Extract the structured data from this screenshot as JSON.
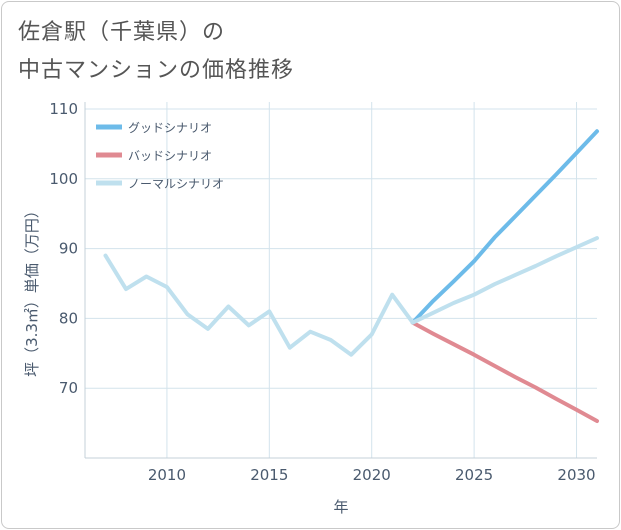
{
  "chart_data": {
    "type": "line",
    "title_line1": "佐倉駅（千葉県）の",
    "title_line2": "中古マンションの価格推移",
    "xlabel": "年",
    "ylabel": "坪（3.3㎡）単価（万円）",
    "xlim": [
      2006,
      2031
    ],
    "ylim": [
      60,
      111
    ],
    "x_ticks": [
      2010,
      2015,
      2020,
      2025,
      2030
    ],
    "y_ticks": [
      70,
      80,
      90,
      100,
      110
    ],
    "grid": true,
    "legend_position": "top-left",
    "series": [
      {
        "name": "グッドシナリオ",
        "color": "#6dbbe9",
        "x": [
          2022,
          2023,
          2024,
          2025,
          2026,
          2027,
          2028,
          2029,
          2030,
          2031
        ],
        "values": [
          79.4,
          82.5,
          85.3,
          88.2,
          91.6,
          94.6,
          97.6,
          100.6,
          103.7,
          106.8
        ]
      },
      {
        "name": "バッドシナリオ",
        "color": "#e08a92",
        "x": [
          2022,
          2023,
          2024,
          2025,
          2026,
          2027,
          2028,
          2029,
          2030,
          2031
        ],
        "values": [
          79.4,
          77.8,
          76.3,
          74.8,
          73.2,
          71.6,
          70.1,
          68.5,
          66.9,
          65.3
        ]
      },
      {
        "name": "ノーマルシナリオ",
        "color": "#bfe0ee",
        "x": [
          2007,
          2008,
          2009,
          2010,
          2011,
          2012,
          2013,
          2014,
          2015,
          2016,
          2017,
          2018,
          2019,
          2020,
          2021,
          2022,
          2023,
          2024,
          2025,
          2026,
          2027,
          2028,
          2029,
          2030,
          2031
        ],
        "values": [
          89.0,
          84.2,
          86.0,
          84.5,
          80.6,
          78.5,
          81.7,
          79.0,
          81.0,
          75.8,
          78.1,
          76.9,
          74.8,
          77.7,
          83.4,
          79.4,
          80.8,
          82.2,
          83.4,
          84.9,
          86.2,
          87.5,
          88.9,
          90.2,
          91.5
        ]
      }
    ]
  }
}
